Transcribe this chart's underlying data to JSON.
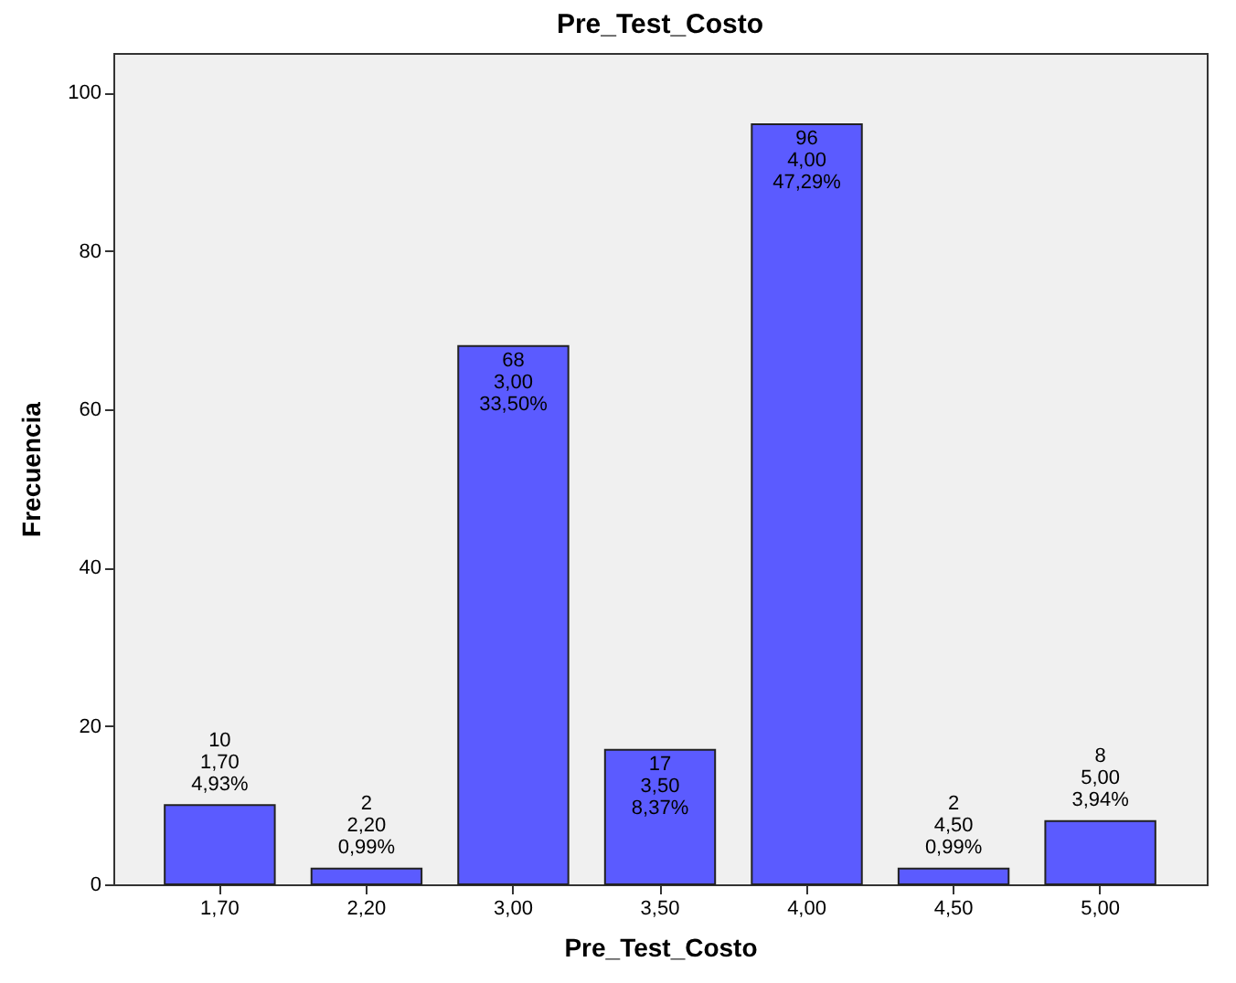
{
  "chart_data": {
    "type": "bar",
    "title": "Pre_Test_Costo",
    "xlabel": "Pre_Test_Costo",
    "ylabel": "Frecuencia",
    "categories": [
      "1,70",
      "2,20",
      "3,00",
      "3,50",
      "4,00",
      "4,50",
      "5,00"
    ],
    "values": [
      10,
      2,
      68,
      17,
      96,
      2,
      8
    ],
    "value_labels": [
      "10\n1,70\n4,93%",
      "2\n2,20\n0,99%",
      "68\n3,00\n33,50%",
      "17\n3,50\n8,37%",
      "96\n4,00\n47,29%",
      "2\n4,50\n0,99%",
      "8\n5,00\n3,94%"
    ],
    "color": "#5b5bff",
    "ylim": [
      0,
      105
    ],
    "yticks": [
      0,
      20,
      40,
      60,
      80,
      100
    ],
    "grid": false
  }
}
